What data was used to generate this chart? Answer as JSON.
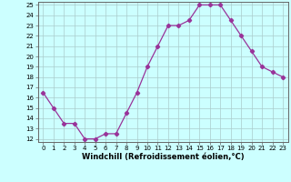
{
  "hours": [
    0,
    1,
    2,
    3,
    4,
    5,
    6,
    7,
    8,
    9,
    10,
    11,
    12,
    13,
    14,
    15,
    16,
    17,
    18,
    19,
    20,
    21,
    22,
    23
  ],
  "values": [
    16.5,
    15.0,
    13.5,
    13.5,
    12.0,
    12.0,
    12.5,
    12.5,
    14.5,
    16.5,
    19.0,
    21.0,
    23.0,
    23.0,
    23.5,
    25.0,
    25.0,
    25.0,
    23.5,
    22.0,
    20.5,
    19.0,
    18.5,
    18.0
  ],
  "line_color": "#993399",
  "marker": "D",
  "markersize": 2.2,
  "bg_color": "#ccffff",
  "grid_color": "#aacccc",
  "xlabel": "Windchill (Refroidissement éolien,°C)",
  "ylim_min": 12,
  "ylim_max": 25,
  "xlim_min": 0,
  "xlim_max": 23,
  "yticks": [
    12,
    13,
    14,
    15,
    16,
    17,
    18,
    19,
    20,
    21,
    22,
    23,
    24,
    25
  ],
  "xticks": [
    0,
    1,
    2,
    3,
    4,
    5,
    6,
    7,
    8,
    9,
    10,
    11,
    12,
    13,
    14,
    15,
    16,
    17,
    18,
    19,
    20,
    21,
    22,
    23
  ],
  "tick_fontsize": 5.0,
  "xlabel_fontsize": 6.0,
  "linewidth": 0.9
}
